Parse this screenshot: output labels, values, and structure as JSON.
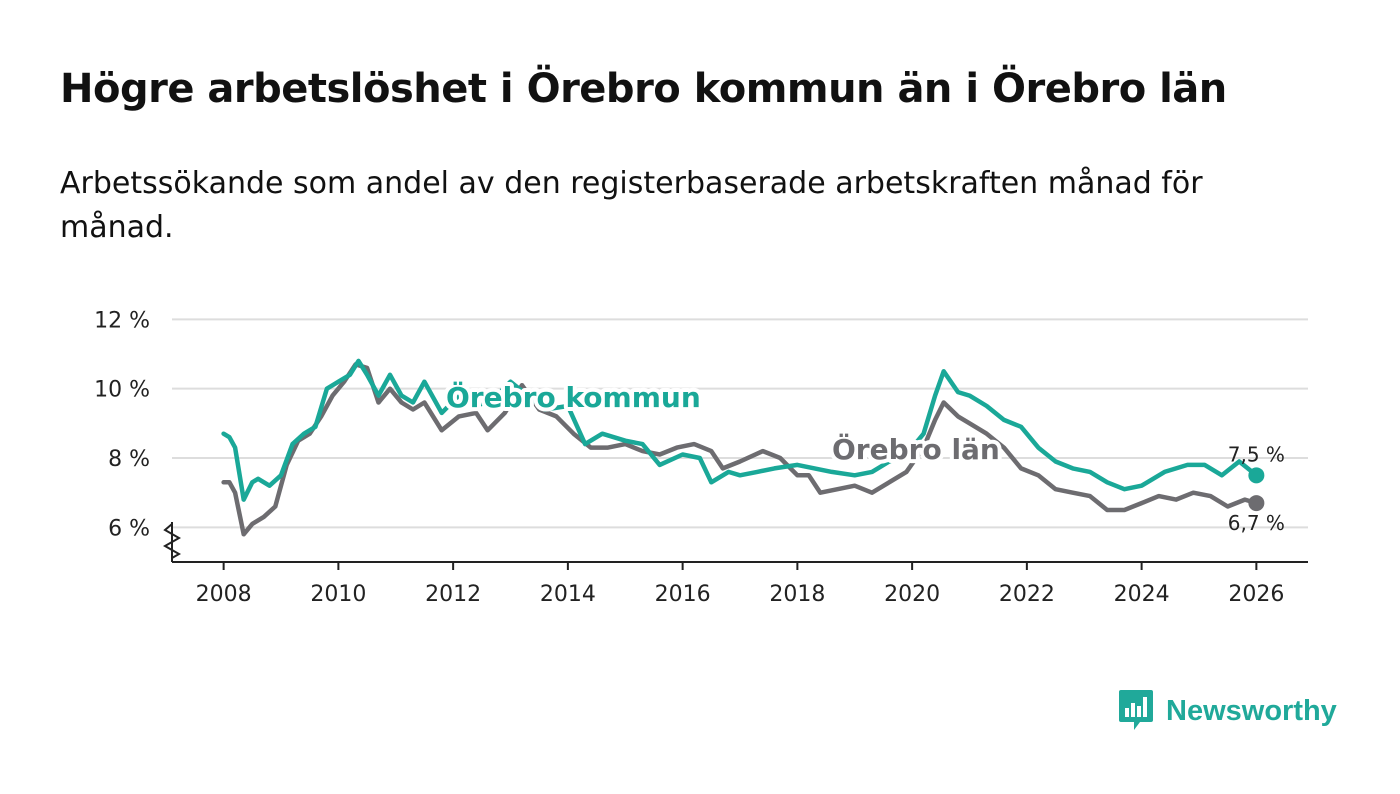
{
  "title": "Högre arbetslöshet i Örebro kommun än i Örebro län",
  "subtitle": "Arbetssökande som andel av den registerbaserade arbetskraften månad för månad.",
  "brand": "Newsworthy",
  "colors": {
    "kommun": "#1aa898",
    "lan": "#6d6c70",
    "grid": "#dddddd",
    "axis": "#222222"
  },
  "chart_data": {
    "type": "line",
    "title": "Högre arbetslöshet i Örebro kommun än i Örebro län",
    "xlabel": "",
    "ylabel": "",
    "ylim": [
      5,
      12.5
    ],
    "xlim": [
      2007.1,
      2026.9
    ],
    "yticks": [
      6,
      8,
      10,
      12
    ],
    "ytick_labels": [
      "6 %",
      "8 %",
      "10 %",
      "12 %"
    ],
    "xticks": [
      2008,
      2010,
      2012,
      2014,
      2016,
      2018,
      2020,
      2022,
      2024,
      2026
    ],
    "xtick_labels": [
      "2008",
      "2010",
      "2012",
      "2014",
      "2016",
      "2018",
      "2020",
      "2022",
      "2024",
      "2026"
    ],
    "series": [
      {
        "name": "Örebro kommun",
        "label": "Örebro kommun",
        "end_label": "7,5 %",
        "color_key": "kommun",
        "points": [
          [
            2008.0,
            8.7
          ],
          [
            2008.1,
            8.6
          ],
          [
            2008.2,
            8.3
          ],
          [
            2008.35,
            6.8
          ],
          [
            2008.5,
            7.3
          ],
          [
            2008.6,
            7.4
          ],
          [
            2008.8,
            7.2
          ],
          [
            2009.0,
            7.5
          ],
          [
            2009.2,
            8.4
          ],
          [
            2009.4,
            8.7
          ],
          [
            2009.6,
            8.9
          ],
          [
            2009.8,
            10.0
          ],
          [
            2010.0,
            10.2
          ],
          [
            2010.2,
            10.4
          ],
          [
            2010.35,
            10.8
          ],
          [
            2010.5,
            10.4
          ],
          [
            2010.7,
            9.8
          ],
          [
            2010.9,
            10.4
          ],
          [
            2011.1,
            9.8
          ],
          [
            2011.3,
            9.6
          ],
          [
            2011.5,
            10.2
          ],
          [
            2011.8,
            9.3
          ],
          [
            2012.1,
            9.8
          ],
          [
            2012.4,
            9.5
          ],
          [
            2012.7,
            9.7
          ],
          [
            2013.0,
            10.2
          ],
          [
            2013.3,
            9.8
          ],
          [
            2013.6,
            9.4
          ],
          [
            2014.0,
            9.5
          ],
          [
            2014.3,
            8.4
          ],
          [
            2014.6,
            8.7
          ],
          [
            2015.0,
            8.5
          ],
          [
            2015.3,
            8.4
          ],
          [
            2015.6,
            7.8
          ],
          [
            2016.0,
            8.1
          ],
          [
            2016.3,
            8.0
          ],
          [
            2016.5,
            7.3
          ],
          [
            2016.8,
            7.6
          ],
          [
            2017.0,
            7.5
          ],
          [
            2017.3,
            7.6
          ],
          [
            2017.6,
            7.7
          ],
          [
            2018.0,
            7.8
          ],
          [
            2018.3,
            7.7
          ],
          [
            2018.6,
            7.6
          ],
          [
            2019.0,
            7.5
          ],
          [
            2019.3,
            7.6
          ],
          [
            2019.6,
            7.9
          ],
          [
            2019.9,
            8.1
          ],
          [
            2020.2,
            8.7
          ],
          [
            2020.4,
            9.8
          ],
          [
            2020.55,
            10.5
          ],
          [
            2020.8,
            9.9
          ],
          [
            2021.0,
            9.8
          ],
          [
            2021.3,
            9.5
          ],
          [
            2021.6,
            9.1
          ],
          [
            2021.9,
            8.9
          ],
          [
            2022.2,
            8.3
          ],
          [
            2022.5,
            7.9
          ],
          [
            2022.8,
            7.7
          ],
          [
            2023.1,
            7.6
          ],
          [
            2023.4,
            7.3
          ],
          [
            2023.7,
            7.1
          ],
          [
            2024.0,
            7.2
          ],
          [
            2024.4,
            7.6
          ],
          [
            2024.8,
            7.8
          ],
          [
            2025.1,
            7.8
          ],
          [
            2025.4,
            7.5
          ],
          [
            2025.7,
            7.9
          ],
          [
            2026.0,
            7.5
          ]
        ]
      },
      {
        "name": "Örebro län",
        "label": "Örebro län",
        "end_label": "6,7 %",
        "color_key": "lan",
        "points": [
          [
            2008.0,
            7.3
          ],
          [
            2008.1,
            7.3
          ],
          [
            2008.2,
            7.0
          ],
          [
            2008.35,
            5.8
          ],
          [
            2008.5,
            6.1
          ],
          [
            2008.7,
            6.3
          ],
          [
            2008.9,
            6.6
          ],
          [
            2009.1,
            7.8
          ],
          [
            2009.3,
            8.5
          ],
          [
            2009.5,
            8.7
          ],
          [
            2009.7,
            9.2
          ],
          [
            2009.9,
            9.8
          ],
          [
            2010.1,
            10.2
          ],
          [
            2010.3,
            10.7
          ],
          [
            2010.5,
            10.6
          ],
          [
            2010.7,
            9.6
          ],
          [
            2010.9,
            10.0
          ],
          [
            2011.1,
            9.6
          ],
          [
            2011.3,
            9.4
          ],
          [
            2011.5,
            9.6
          ],
          [
            2011.8,
            8.8
          ],
          [
            2012.1,
            9.2
          ],
          [
            2012.4,
            9.3
          ],
          [
            2012.6,
            8.8
          ],
          [
            2012.9,
            9.3
          ],
          [
            2013.2,
            10.1
          ],
          [
            2013.5,
            9.4
          ],
          [
            2013.8,
            9.2
          ],
          [
            2014.1,
            8.7
          ],
          [
            2014.4,
            8.3
          ],
          [
            2014.7,
            8.3
          ],
          [
            2015.0,
            8.4
          ],
          [
            2015.3,
            8.2
          ],
          [
            2015.6,
            8.1
          ],
          [
            2015.9,
            8.3
          ],
          [
            2016.2,
            8.4
          ],
          [
            2016.5,
            8.2
          ],
          [
            2016.7,
            7.7
          ],
          [
            2017.0,
            7.9
          ],
          [
            2017.4,
            8.2
          ],
          [
            2017.7,
            8.0
          ],
          [
            2018.0,
            7.5
          ],
          [
            2018.2,
            7.5
          ],
          [
            2018.4,
            7.0
          ],
          [
            2018.7,
            7.1
          ],
          [
            2019.0,
            7.2
          ],
          [
            2019.3,
            7.0
          ],
          [
            2019.6,
            7.3
          ],
          [
            2019.9,
            7.6
          ],
          [
            2020.2,
            8.3
          ],
          [
            2020.4,
            9.1
          ],
          [
            2020.55,
            9.6
          ],
          [
            2020.8,
            9.2
          ],
          [
            2021.0,
            9.0
          ],
          [
            2021.3,
            8.7
          ],
          [
            2021.6,
            8.3
          ],
          [
            2021.9,
            7.7
          ],
          [
            2022.2,
            7.5
          ],
          [
            2022.5,
            7.1
          ],
          [
            2022.8,
            7.0
          ],
          [
            2023.1,
            6.9
          ],
          [
            2023.4,
            6.5
          ],
          [
            2023.7,
            6.5
          ],
          [
            2024.0,
            6.7
          ],
          [
            2024.3,
            6.9
          ],
          [
            2024.6,
            6.8
          ],
          [
            2024.9,
            7.0
          ],
          [
            2025.2,
            6.9
          ],
          [
            2025.5,
            6.6
          ],
          [
            2025.8,
            6.8
          ],
          [
            2026.0,
            6.7
          ]
        ]
      }
    ]
  }
}
